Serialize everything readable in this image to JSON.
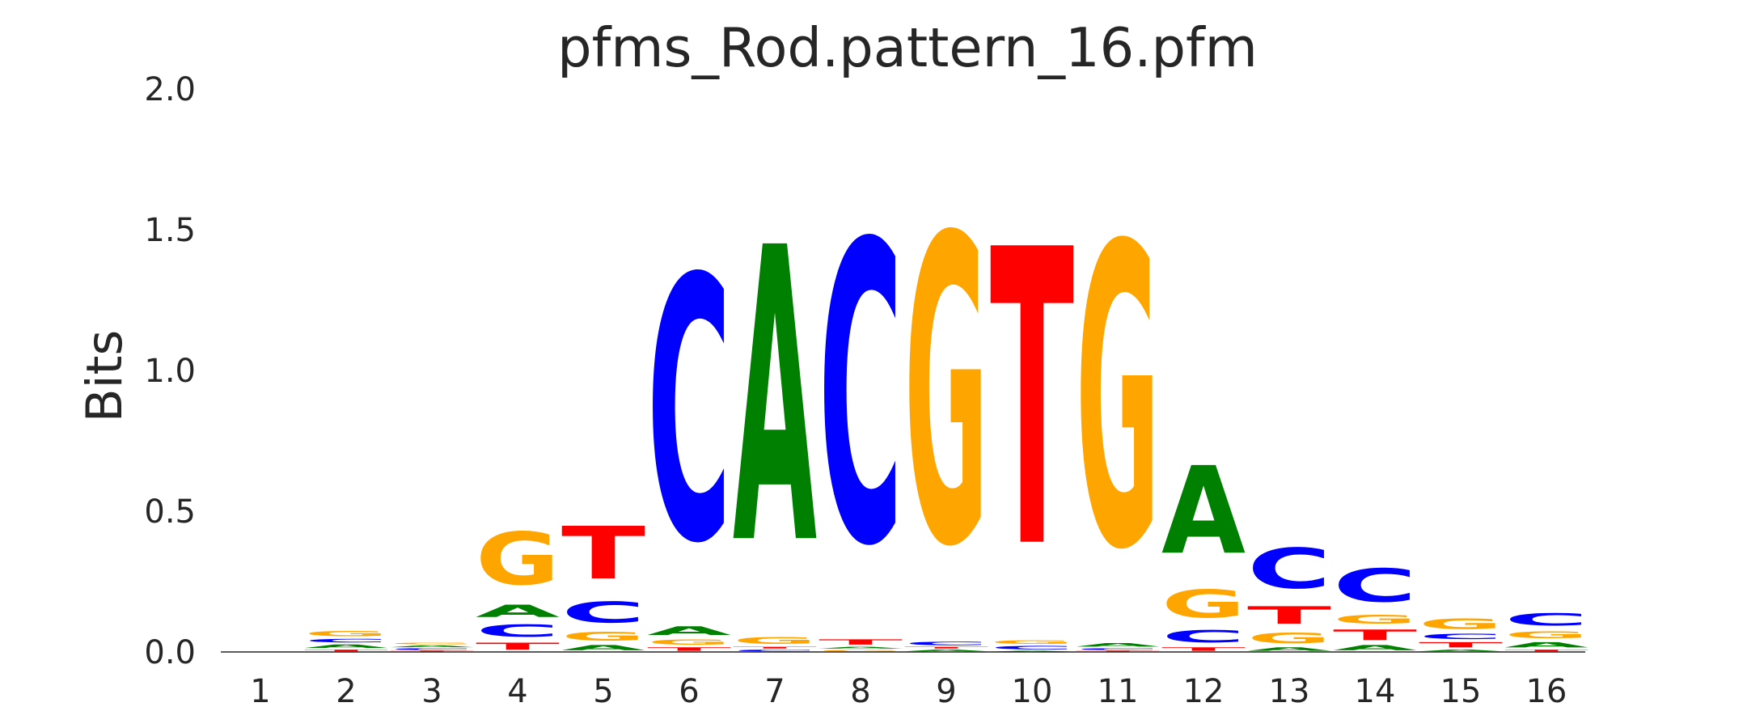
{
  "chart_data": {
    "type": "sequence-logo",
    "title": "pfms_Rod.pattern_16.pfm",
    "xlabel": "",
    "ylabel": "Bits",
    "ylim": [
      0,
      2.0
    ],
    "yticks": [
      "0.0",
      "0.5",
      "1.0",
      "1.5",
      "2.0"
    ],
    "grid": false,
    "legend": "none",
    "colors": {
      "A": "#008000",
      "C": "#0000ff",
      "G": "#ffa500",
      "T": "#ff0000"
    },
    "positions": [
      {
        "label": "1",
        "letters": []
      },
      {
        "label": "2",
        "letters": [
          {
            "base": "T",
            "bits": 0.01
          },
          {
            "base": "A",
            "bits": 0.02
          },
          {
            "base": "C",
            "bits": 0.02
          },
          {
            "base": "G",
            "bits": 0.03
          }
        ]
      },
      {
        "label": "3",
        "letters": [
          {
            "base": "T",
            "bits": 0.005
          },
          {
            "base": "C",
            "bits": 0.01
          },
          {
            "base": "A",
            "bits": 0.01
          },
          {
            "base": "G",
            "bits": 0.01
          }
        ]
      },
      {
        "label": "4",
        "letters": [
          {
            "base": "T",
            "bits": 0.04
          },
          {
            "base": "C",
            "bits": 0.07
          },
          {
            "base": "A",
            "bits": 0.07
          },
          {
            "base": "G",
            "bits": 0.3
          }
        ]
      },
      {
        "label": "5",
        "letters": [
          {
            "base": "A",
            "bits": 0.03
          },
          {
            "base": "G",
            "bits": 0.05
          },
          {
            "base": "C",
            "bits": 0.12
          },
          {
            "base": "T",
            "bits": 0.3
          }
        ]
      },
      {
        "label": "6",
        "letters": [
          {
            "base": "T",
            "bits": 0.02
          },
          {
            "base": "G",
            "bits": 0.03
          },
          {
            "base": "A",
            "bits": 0.05
          },
          {
            "base": "C",
            "bits": 1.5
          }
        ]
      },
      {
        "label": "7",
        "letters": [
          {
            "base": "C",
            "bits": 0.01
          },
          {
            "base": "T",
            "bits": 0.01
          },
          {
            "base": "G",
            "bits": 0.04
          },
          {
            "base": "A",
            "bits": 1.68
          }
        ]
      },
      {
        "label": "8",
        "letters": [
          {
            "base": "G",
            "bits": 0.01
          },
          {
            "base": "A",
            "bits": 0.01
          },
          {
            "base": "T",
            "bits": 0.03
          },
          {
            "base": "C",
            "bits": 1.71
          }
        ]
      },
      {
        "label": "9",
        "letters": [
          {
            "base": "A",
            "bits": 0.01
          },
          {
            "base": "T",
            "bits": 0.01
          },
          {
            "base": "C",
            "bits": 0.02
          },
          {
            "base": "G",
            "bits": 1.75
          }
        ]
      },
      {
        "label": "10",
        "letters": [
          {
            "base": "A",
            "bits": 0.005
          },
          {
            "base": "C",
            "bits": 0.02
          },
          {
            "base": "G",
            "bits": 0.02
          },
          {
            "base": "T",
            "bits": 1.69
          }
        ]
      },
      {
        "label": "11",
        "letters": [
          {
            "base": "T",
            "bits": 0.005
          },
          {
            "base": "C",
            "bits": 0.01
          },
          {
            "base": "A",
            "bits": 0.02
          },
          {
            "base": "G",
            "bits": 1.72
          }
        ]
      },
      {
        "label": "12",
        "letters": [
          {
            "base": "T",
            "bits": 0.02
          },
          {
            "base": "C",
            "bits": 0.07
          },
          {
            "base": "G",
            "bits": 0.16
          },
          {
            "base": "A",
            "bits": 0.5
          }
        ]
      },
      {
        "label": "13",
        "letters": [
          {
            "base": "A",
            "bits": 0.02
          },
          {
            "base": "G",
            "bits": 0.06
          },
          {
            "base": "T",
            "bits": 0.1
          },
          {
            "base": "C",
            "bits": 0.23
          }
        ]
      },
      {
        "label": "14",
        "letters": [
          {
            "base": "A",
            "bits": 0.03
          },
          {
            "base": "T",
            "bits": 0.06
          },
          {
            "base": "G",
            "bits": 0.05
          },
          {
            "base": "C",
            "bits": 0.19
          }
        ]
      },
      {
        "label": "15",
        "letters": [
          {
            "base": "A",
            "bits": 0.01
          },
          {
            "base": "T",
            "bits": 0.03
          },
          {
            "base": "C",
            "bits": 0.03
          },
          {
            "base": "G",
            "bits": 0.06
          }
        ]
      },
      {
        "label": "16",
        "letters": [
          {
            "base": "T",
            "bits": 0.01
          },
          {
            "base": "A",
            "bits": 0.03
          },
          {
            "base": "G",
            "bits": 0.04
          },
          {
            "base": "C",
            "bits": 0.07
          }
        ]
      }
    ]
  }
}
